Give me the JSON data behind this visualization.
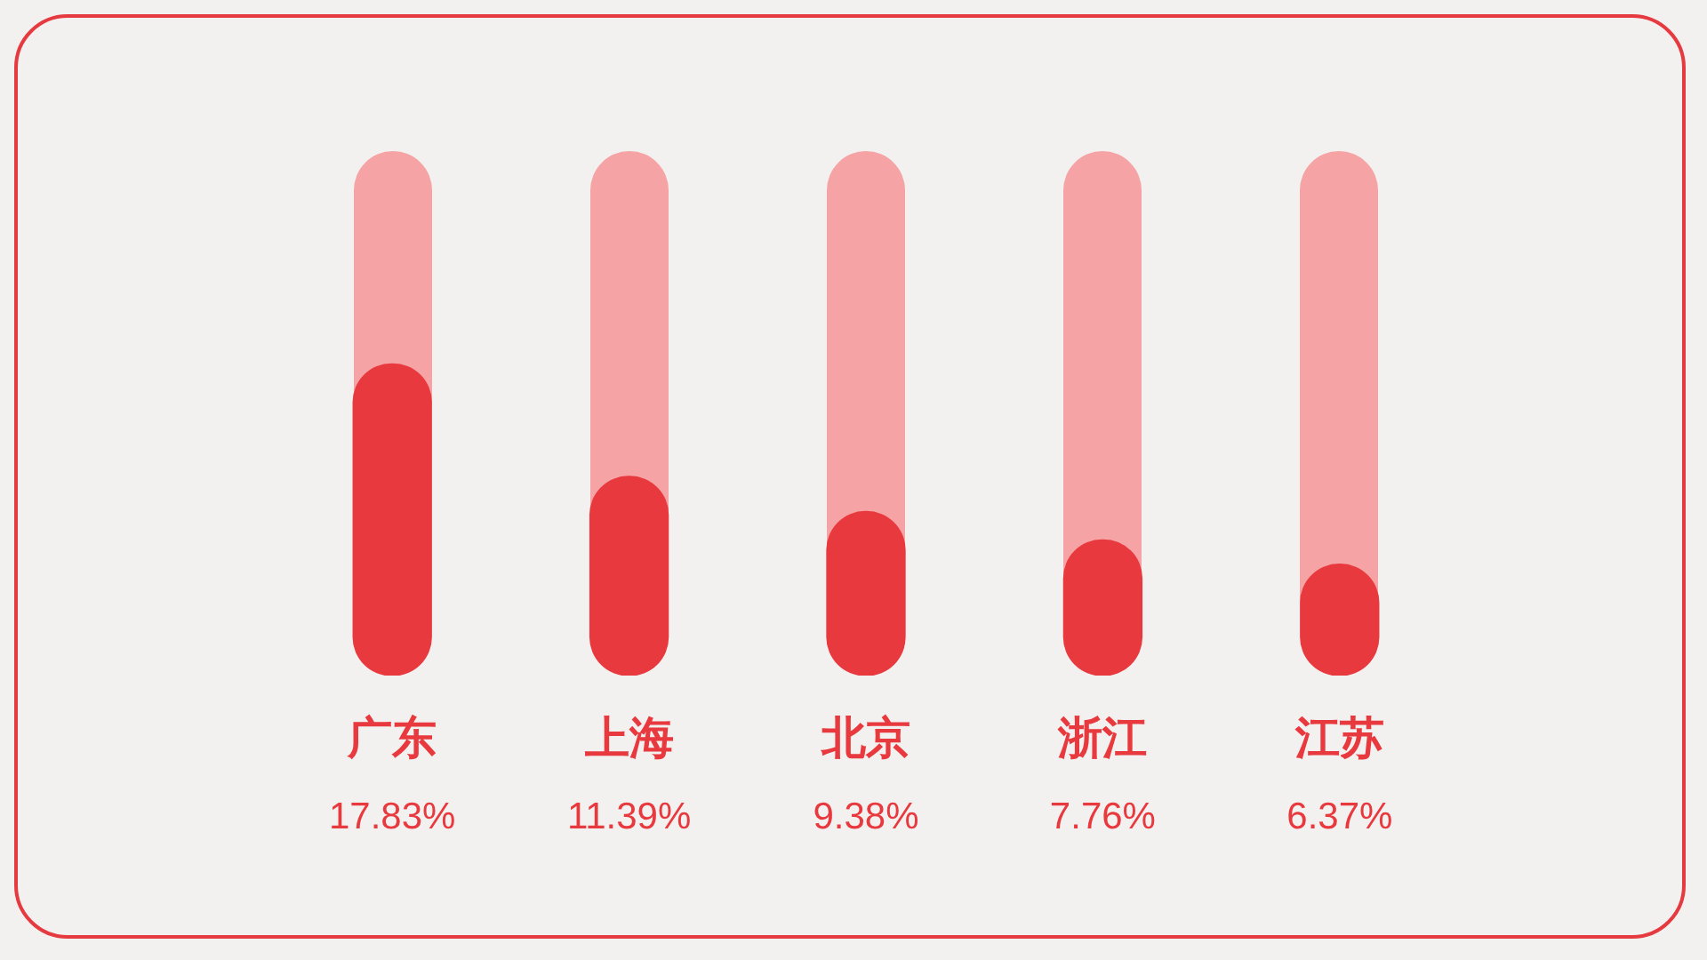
{
  "chart_data": {
    "type": "bar",
    "categories": [
      "广东",
      "上海",
      "北京",
      "浙江",
      "江苏"
    ],
    "values": [
      17.83,
      11.39,
      9.38,
      7.76,
      6.37
    ],
    "color": "#e8393f",
    "value_labels": [
      "17.83%",
      "11.39%",
      "9.38%",
      "7.76%",
      "6.37%"
    ]
  }
}
